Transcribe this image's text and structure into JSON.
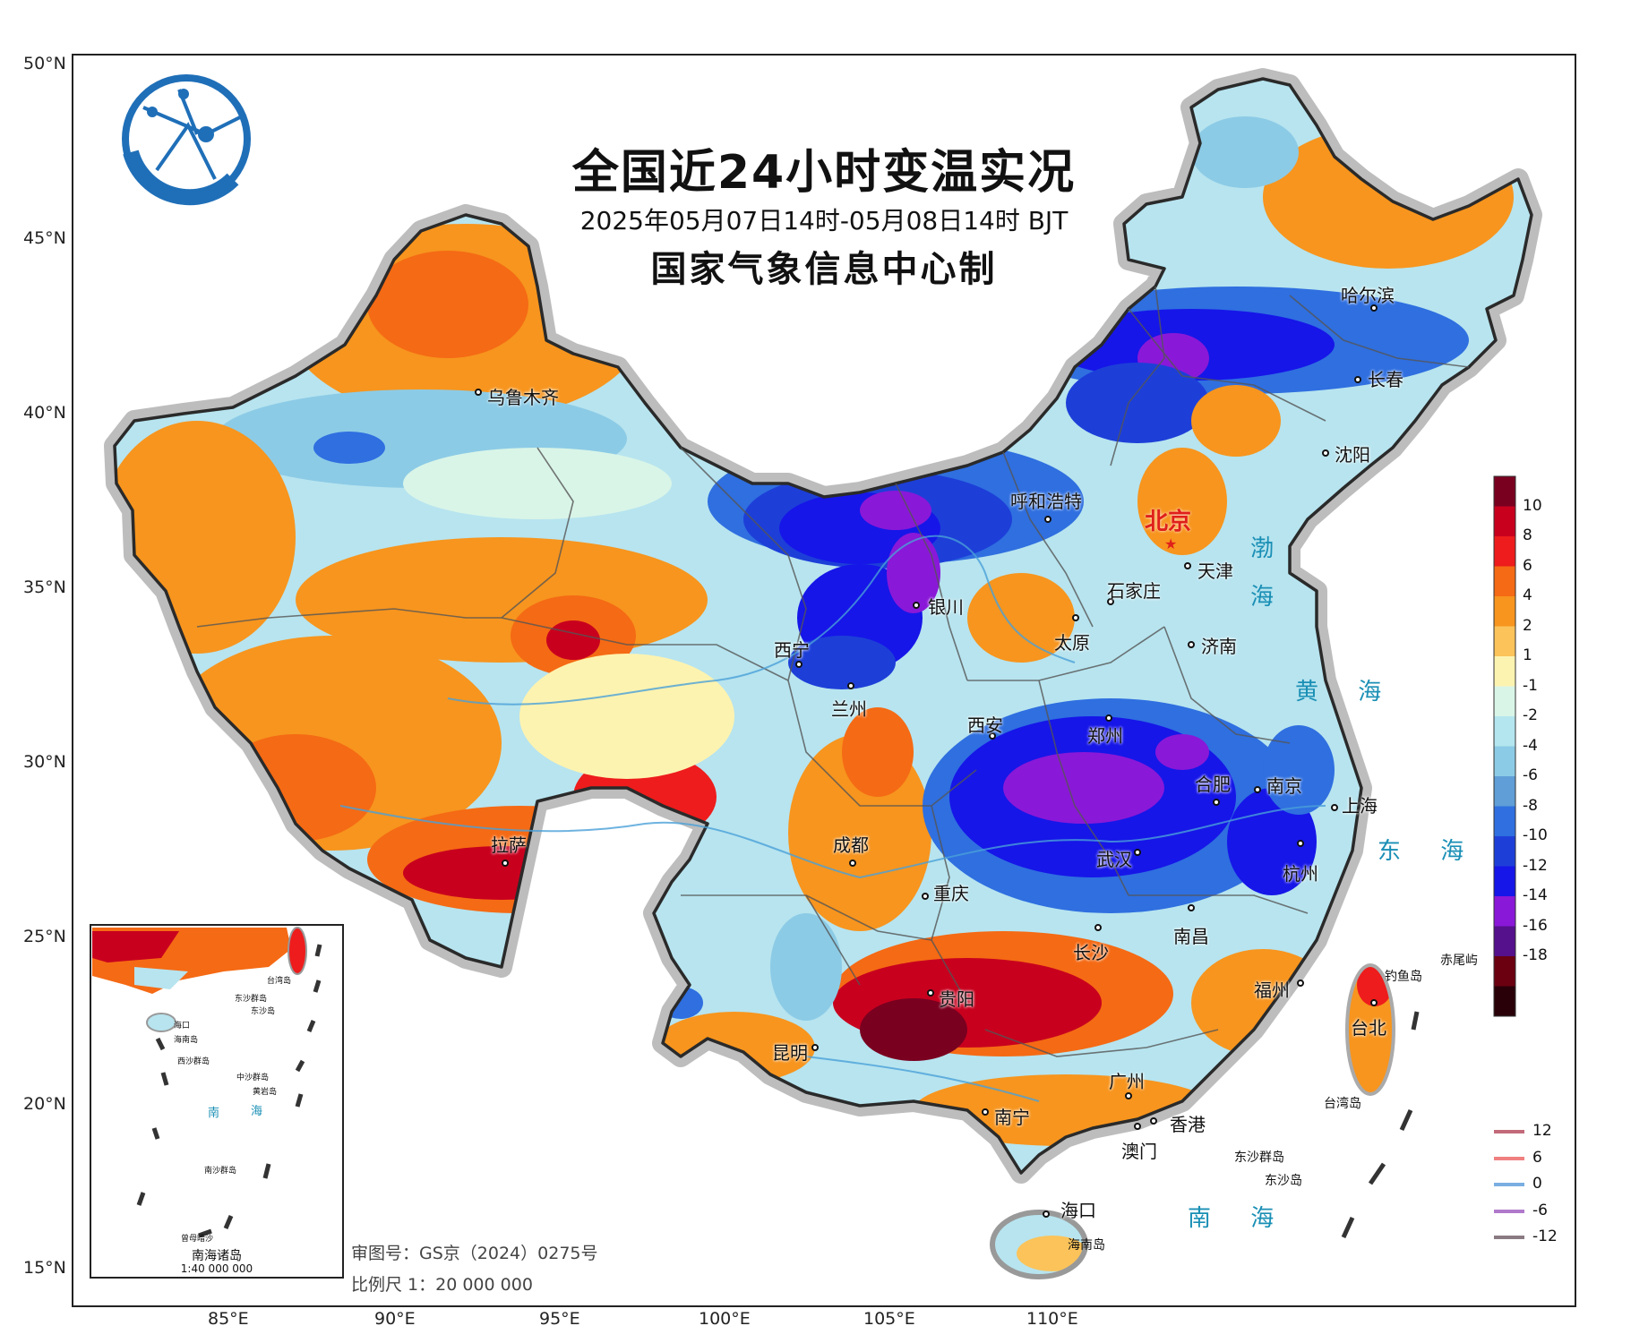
{
  "title": "全国近24小时变温实况",
  "time_range": "2025年05月07日14时-05月08日14时 BJT",
  "issuer": "国家气象信息中心制",
  "lat_labels": [
    "50°N",
    "45°N",
    "40°N",
    "35°N",
    "30°N",
    "25°N",
    "20°N",
    "15°N"
  ],
  "lon_labels": [
    "85°E",
    "90°E",
    "95°E",
    "100°E",
    "105°E",
    "110°E"
  ],
  "capital": "北京",
  "cities": {
    "urumqi": "乌鲁木齐",
    "harbin": "哈尔滨",
    "changchun": "长春",
    "shenyang": "沈阳",
    "hohhot": "呼和浩特",
    "tianjin": "天津",
    "shijiazhuang": "石家庄",
    "yinchuan": "银川",
    "taiyuan": "太原",
    "jinan": "济南",
    "xining": "西宁",
    "lanzhou": "兰州",
    "xian": "西安",
    "zhengzhou": "郑州",
    "hefei": "合肥",
    "nanjing": "南京",
    "shanghai": "上海",
    "lhasa": "拉萨",
    "chengdu": "成都",
    "wuhan": "武汉",
    "hangzhou": "杭州",
    "chongqing": "重庆",
    "changsha": "长沙",
    "nanchang": "南昌",
    "guiyang": "贵阳",
    "fuzhou": "福州",
    "taipei": "台北",
    "kunming": "昆明",
    "guangzhou": "广州",
    "nanning": "南宁",
    "hongkong": "香港",
    "macau": "澳门",
    "haikou": "海口"
  },
  "seas": {
    "bohai_a": "渤",
    "bohai_b": "海",
    "yellow": "黄 海",
    "east": "东 海",
    "south": "南 海"
  },
  "islands": {
    "chiwei": "赤尾屿",
    "diaoyu": "钓鱼岛",
    "taiwan": "台湾岛",
    "dongsha": "东沙群岛",
    "dongsha_dao": "东沙岛",
    "hainan": "海南岛"
  },
  "inset": {
    "title": "南海诸岛",
    "scale": "1:40 000 000",
    "labels": {
      "taiwan": "台湾岛",
      "dongsha_qd": "东沙群岛",
      "dongsha_d": "东沙岛",
      "haikou": "海口",
      "hainan": "海南岛",
      "xisha": "西沙群岛",
      "zhongsha": "中沙群岛",
      "huangyan": "黄岩岛",
      "nan": "南",
      "hai": "海",
      "nansha": "南沙群岛",
      "zengmu": "曾母暗沙"
    }
  },
  "footer": {
    "approval": "审图号：GS京（2024）0275号",
    "scale": "比例尺 1：20 000 000"
  },
  "colorbar": {
    "labels": [
      "10",
      "8",
      "6",
      "4",
      "2",
      "1",
      "-1",
      "-2",
      "-4",
      "-6",
      "-8",
      "-10",
      "-12",
      "-14",
      "-16",
      "-18"
    ],
    "colors": [
      "#7a0020",
      "#c8001e",
      "#ee1c1c",
      "#f56a14",
      "#f7951e",
      "#fbc35a",
      "#fdf3b0",
      "#d9f5e8",
      "#b4e6ef",
      "#8ccbe6",
      "#5f9ed6",
      "#2f6fe0",
      "#1d3fd8",
      "#1616e8",
      "#8a18d8",
      "#55108c",
      "#6a0010",
      "#2a0008"
    ]
  },
  "contour_legend": [
    {
      "label": "12",
      "color": "#c26a7a"
    },
    {
      "label": "6",
      "color": "#f08080"
    },
    {
      "label": "0",
      "color": "#7aaee0"
    },
    {
      "label": "-6",
      "color": "#b07acc"
    },
    {
      "label": "-12",
      "color": "#8a7a82"
    }
  ]
}
